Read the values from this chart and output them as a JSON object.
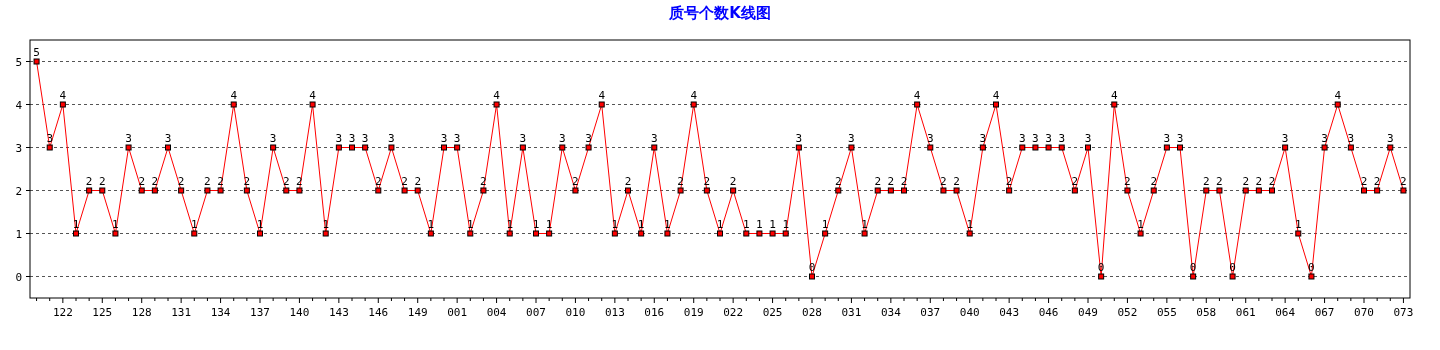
{
  "chart_data": {
    "type": "line",
    "title": "质号个数K线图",
    "categories": [
      null,
      null,
      "122",
      null,
      null,
      "125",
      null,
      null,
      "128",
      null,
      null,
      "131",
      null,
      null,
      "134",
      null,
      null,
      "137",
      null,
      null,
      "140",
      null,
      null,
      "143",
      null,
      null,
      "146",
      null,
      null,
      "149",
      null,
      null,
      "001",
      null,
      null,
      "004",
      null,
      null,
      "007",
      null,
      null,
      "010",
      null,
      null,
      "013",
      null,
      null,
      "016",
      null,
      null,
      "019",
      null,
      null,
      "022",
      null,
      null,
      "025",
      null,
      null,
      "028",
      null,
      null,
      "031",
      null,
      null,
      "034",
      null,
      null,
      "037",
      null,
      null,
      "040",
      null,
      null,
      "043",
      null,
      null,
      "046",
      null,
      null,
      "049",
      null,
      null,
      "052",
      null,
      null,
      "055",
      null,
      null,
      "058",
      null,
      null,
      "061",
      null,
      null,
      "064",
      null,
      null,
      "067",
      null,
      null,
      "070",
      null,
      null,
      "073"
    ],
    "values": [
      5,
      3,
      4,
      1,
      2,
      2,
      1,
      3,
      2,
      2,
      3,
      2,
      1,
      2,
      2,
      4,
      2,
      1,
      3,
      2,
      2,
      4,
      1,
      3,
      3,
      3,
      2,
      3,
      2,
      2,
      1,
      3,
      3,
      1,
      2,
      4,
      1,
      3,
      1,
      1,
      3,
      2,
      3,
      4,
      1,
      2,
      1,
      3,
      1,
      2,
      4,
      2,
      1,
      2,
      1,
      1,
      1,
      1,
      3,
      0,
      1,
      2,
      3,
      1,
      2,
      2,
      2,
      4,
      3,
      2,
      2,
      1,
      3,
      4,
      2,
      3,
      3,
      3,
      3,
      2,
      3,
      0,
      4,
      2,
      1,
      2,
      3,
      3,
      0,
      2,
      2,
      0,
      2,
      2,
      2,
      3,
      1,
      0,
      3,
      4,
      3,
      2,
      2,
      3,
      2
    ],
    "color": "#ff0000",
    "ylim": [
      -0.5,
      5.5
    ],
    "yticks": [
      0,
      1,
      2,
      3,
      4,
      5
    ],
    "grid": "y",
    "marker": "square",
    "data_labels": true
  }
}
